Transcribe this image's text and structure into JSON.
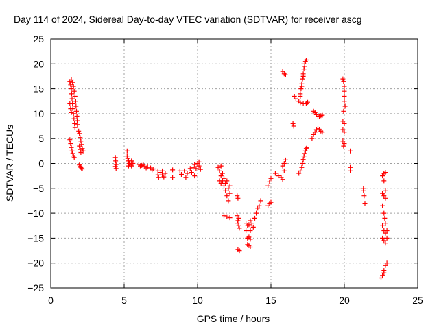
{
  "chart_data": {
    "type": "scatter",
    "title": "Day 114 of 2024, Sidereal Day-to-day VTEC variation (SDTVAR) for receiver ascg",
    "xlabel": "GPS time / hours",
    "ylabel": "SDTVAR / TECUs",
    "xlim": [
      0,
      25
    ],
    "ylim": [
      -25,
      25
    ],
    "xticks": [
      0,
      5,
      10,
      15,
      20,
      25
    ],
    "yticks": [
      25,
      20,
      15,
      10,
      5,
      0,
      -5,
      -10,
      -15,
      -20,
      -25
    ],
    "xtick_labels": [
      "0",
      "5",
      "10",
      "15",
      "20",
      "25"
    ],
    "ytick_labels": [
      "25",
      "20",
      "15",
      "10",
      "5",
      "0",
      "−5",
      "−10",
      "−15",
      "−20",
      "−25"
    ],
    "grid": true,
    "marker": "+",
    "color": "#ff0000",
    "series": [
      {
        "name": "SDTVAR",
        "points": [
          [
            1.3,
            16.5
          ],
          [
            1.35,
            15.8
          ],
          [
            1.4,
            15.0
          ],
          [
            1.42,
            14.0
          ],
          [
            1.45,
            13.0
          ],
          [
            1.48,
            12.0
          ],
          [
            1.5,
            11.0
          ],
          [
            1.55,
            10.0
          ],
          [
            1.58,
            9.0
          ],
          [
            1.62,
            8.0
          ],
          [
            1.65,
            7.2
          ],
          [
            1.4,
            16.8
          ],
          [
            1.48,
            16.3
          ],
          [
            1.55,
            15.5
          ],
          [
            1.6,
            14.5
          ],
          [
            1.65,
            13.5
          ],
          [
            1.7,
            12.5
          ],
          [
            1.72,
            11.5
          ],
          [
            1.75,
            10.5
          ],
          [
            1.78,
            9.5
          ],
          [
            1.8,
            8.6
          ],
          [
            1.82,
            7.8
          ],
          [
            1.3,
            12.0
          ],
          [
            1.35,
            11.0
          ],
          [
            1.4,
            10.2
          ],
          [
            1.3,
            4.8
          ],
          [
            1.35,
            4.0
          ],
          [
            1.4,
            3.2
          ],
          [
            1.45,
            2.5
          ],
          [
            1.5,
            2.0
          ],
          [
            1.55,
            1.5
          ],
          [
            1.6,
            1.2
          ],
          [
            1.9,
            6.5
          ],
          [
            1.95,
            6.0
          ],
          [
            2.0,
            5.2
          ],
          [
            2.05,
            4.5
          ],
          [
            2.1,
            3.8
          ],
          [
            2.15,
            3.0
          ],
          [
            2.2,
            2.5
          ],
          [
            1.95,
            3.5
          ],
          [
            2.0,
            2.8
          ],
          [
            2.05,
            2.2
          ],
          [
            1.95,
            -0.3
          ],
          [
            2.0,
            -0.6
          ],
          [
            2.05,
            -0.8
          ],
          [
            2.1,
            -1.0
          ],
          [
            2.15,
            -1.1
          ],
          [
            4.4,
            1.2
          ],
          [
            4.42,
            0.5
          ],
          [
            4.45,
            -0.2
          ],
          [
            4.45,
            -1.0
          ],
          [
            4.4,
            -0.6
          ],
          [
            5.2,
            2.5
          ],
          [
            5.2,
            1.5
          ],
          [
            5.25,
            1.0
          ],
          [
            5.3,
            0.5
          ],
          [
            5.35,
            0.0
          ],
          [
            5.4,
            -0.3
          ],
          [
            5.5,
            0.5
          ],
          [
            5.5,
            -0.5
          ],
          [
            5.6,
            0.0
          ],
          [
            5.3,
            -0.5
          ],
          [
            6.0,
            -0.2
          ],
          [
            6.2,
            -0.4
          ],
          [
            6.4,
            -0.6
          ],
          [
            6.6,
            -0.7
          ],
          [
            6.8,
            -0.9
          ],
          [
            7.0,
            -1.1
          ],
          [
            6.1,
            -0.5
          ],
          [
            6.5,
            -0.9
          ],
          [
            6.9,
            -1.3
          ],
          [
            6.3,
            -0.2
          ],
          [
            7.3,
            -1.5
          ],
          [
            7.3,
            -2.3
          ],
          [
            7.35,
            -2.8
          ],
          [
            7.5,
            -1.8
          ],
          [
            7.6,
            -2.3
          ],
          [
            7.7,
            -2.7
          ],
          [
            7.8,
            -2.0
          ],
          [
            7.6,
            -1.5
          ],
          [
            8.3,
            -1.3
          ],
          [
            8.3,
            -2.8
          ],
          [
            8.8,
            -1.5
          ],
          [
            8.9,
            -2.2
          ],
          [
            9.1,
            -1.5
          ],
          [
            9.2,
            -2.8
          ],
          [
            9.3,
            -2.0
          ],
          [
            9.5,
            -1.0
          ],
          [
            9.6,
            -1.8
          ],
          [
            9.7,
            -0.8
          ],
          [
            9.8,
            -0.2
          ],
          [
            9.9,
            -1.0
          ],
          [
            10.0,
            0.0
          ],
          [
            10.1,
            -0.5
          ],
          [
            10.2,
            -1.2
          ],
          [
            9.8,
            -2.5
          ],
          [
            10.1,
            0.3
          ],
          [
            11.4,
            -0.8
          ],
          [
            11.5,
            -1.5
          ],
          [
            11.6,
            -2.5
          ],
          [
            11.7,
            -3.5
          ],
          [
            11.8,
            -4.5
          ],
          [
            11.9,
            -5.5
          ],
          [
            12.0,
            -6.5
          ],
          [
            12.1,
            -7.5
          ],
          [
            11.5,
            -3.5
          ],
          [
            11.6,
            -4.0
          ],
          [
            11.7,
            -2.0
          ],
          [
            11.8,
            -3.0
          ],
          [
            11.9,
            -4.0
          ],
          [
            12.0,
            -3.5
          ],
          [
            12.1,
            -5.0
          ],
          [
            12.2,
            -4.5
          ],
          [
            12.2,
            -6.0
          ],
          [
            11.6,
            -0.5
          ],
          [
            11.8,
            -10.5
          ],
          [
            12.0,
            -10.7
          ],
          [
            12.2,
            -10.9
          ],
          [
            12.7,
            -6.5
          ],
          [
            12.75,
            -7.0
          ],
          [
            12.7,
            -10.5
          ],
          [
            12.75,
            -11.5
          ],
          [
            12.8,
            -12.5
          ],
          [
            12.85,
            -13.0
          ],
          [
            12.7,
            -12.0
          ],
          [
            12.8,
            -11.0
          ],
          [
            12.75,
            -17.3
          ],
          [
            12.85,
            -17.5
          ],
          [
            13.3,
            -12.0
          ],
          [
            13.4,
            -12.5
          ],
          [
            13.5,
            -12.3
          ],
          [
            13.6,
            -11.5
          ],
          [
            13.7,
            -12.0
          ],
          [
            13.8,
            -12.8
          ],
          [
            13.9,
            -11.0
          ],
          [
            14.0,
            -10.0
          ],
          [
            14.1,
            -9.0
          ],
          [
            14.2,
            -8.5
          ],
          [
            14.3,
            -7.5
          ],
          [
            13.4,
            -15.0
          ],
          [
            13.5,
            -14.8
          ],
          [
            13.6,
            -15.2
          ],
          [
            13.4,
            -16.3
          ],
          [
            13.5,
            -16.5
          ],
          [
            13.6,
            -16.8
          ],
          [
            13.3,
            -13.5
          ],
          [
            13.6,
            -13.5
          ],
          [
            14.8,
            -4.5
          ],
          [
            14.9,
            -3.7
          ],
          [
            15.0,
            -3.0
          ],
          [
            14.8,
            -8.5
          ],
          [
            14.9,
            -8.0
          ],
          [
            15.0,
            -7.8
          ],
          [
            15.3,
            -2.0
          ],
          [
            15.5,
            -2.5
          ],
          [
            15.7,
            -2.8
          ],
          [
            15.8,
            -3.2
          ],
          [
            15.8,
            -0.5
          ],
          [
            15.9,
            0.0
          ],
          [
            16.0,
            0.7
          ],
          [
            15.9,
            -1.5
          ],
          [
            15.8,
            18.5
          ],
          [
            15.9,
            18.0
          ],
          [
            16.0,
            17.8
          ],
          [
            16.5,
            8.0
          ],
          [
            16.55,
            7.5
          ],
          [
            16.6,
            13.5
          ],
          [
            16.7,
            13.0
          ],
          [
            16.9,
            12.5
          ],
          [
            17.0,
            13.5
          ],
          [
            17.05,
            15.0
          ],
          [
            17.1,
            16.0
          ],
          [
            17.15,
            17.0
          ],
          [
            17.2,
            18.0
          ],
          [
            17.25,
            19.0
          ],
          [
            17.3,
            20.0
          ],
          [
            17.35,
            20.5
          ],
          [
            17.4,
            20.8
          ],
          [
            17.0,
            14.0
          ],
          [
            17.1,
            15.5
          ],
          [
            17.2,
            17.5
          ],
          [
            17.3,
            19.5
          ],
          [
            17.0,
            12.2
          ],
          [
            17.2,
            12.0
          ],
          [
            17.4,
            12.0
          ],
          [
            17.5,
            12.3
          ],
          [
            16.9,
            -2.0
          ],
          [
            17.0,
            -1.5
          ],
          [
            17.1,
            -0.8
          ],
          [
            17.15,
            0.0
          ],
          [
            17.2,
            0.8
          ],
          [
            17.25,
            1.5
          ],
          [
            17.3,
            2.0
          ],
          [
            17.35,
            2.5
          ],
          [
            17.4,
            3.0
          ],
          [
            17.45,
            3.2
          ],
          [
            17.8,
            5.0
          ],
          [
            17.9,
            5.8
          ],
          [
            18.0,
            6.3
          ],
          [
            18.1,
            6.8
          ],
          [
            18.2,
            7.0
          ],
          [
            18.3,
            6.8
          ],
          [
            18.4,
            6.5
          ],
          [
            18.5,
            6.3
          ],
          [
            17.9,
            10.5
          ],
          [
            18.0,
            10.2
          ],
          [
            18.1,
            9.8
          ],
          [
            18.2,
            9.5
          ],
          [
            18.3,
            9.5
          ],
          [
            18.4,
            9.6
          ],
          [
            18.5,
            9.7
          ],
          [
            19.9,
            17.0
          ],
          [
            19.95,
            16.5
          ],
          [
            20.0,
            15.5
          ],
          [
            20.0,
            14.5
          ],
          [
            20.0,
            13.5
          ],
          [
            20.0,
            12.5
          ],
          [
            20.05,
            11.5
          ],
          [
            19.95,
            10.5
          ],
          [
            19.9,
            8.5
          ],
          [
            20.0,
            8.0
          ],
          [
            19.9,
            6.8
          ],
          [
            20.0,
            6.3
          ],
          [
            19.9,
            4.5
          ],
          [
            20.0,
            4.0
          ],
          [
            19.95,
            3.5
          ],
          [
            20.4,
            2.5
          ],
          [
            20.4,
            -0.8
          ],
          [
            20.4,
            -1.5
          ],
          [
            21.3,
            -5.0
          ],
          [
            21.35,
            -6.5
          ],
          [
            21.4,
            -8.0
          ],
          [
            21.3,
            -5.5
          ],
          [
            22.6,
            -2.5
          ],
          [
            22.7,
            -2.0
          ],
          [
            22.8,
            -1.8
          ],
          [
            22.7,
            -3.5
          ],
          [
            22.6,
            -6.0
          ],
          [
            22.7,
            -6.5
          ],
          [
            22.8,
            -7.0
          ],
          [
            22.6,
            -8.5
          ],
          [
            22.7,
            -10.0
          ],
          [
            22.75,
            -11.0
          ],
          [
            22.8,
            -12.0
          ],
          [
            22.6,
            -12.5
          ],
          [
            22.7,
            -13.5
          ],
          [
            22.8,
            -14.0
          ],
          [
            22.6,
            -15.0
          ],
          [
            22.7,
            -15.5
          ],
          [
            22.8,
            -16.0
          ],
          [
            22.9,
            -15.0
          ],
          [
            22.9,
            -13.5
          ],
          [
            22.8,
            -5.5
          ],
          [
            22.5,
            -23.0
          ],
          [
            22.6,
            -22.5
          ],
          [
            22.7,
            -21.5
          ],
          [
            22.8,
            -20.5
          ],
          [
            22.9,
            -20.0
          ],
          [
            22.7,
            -22.0
          ]
        ]
      }
    ]
  }
}
